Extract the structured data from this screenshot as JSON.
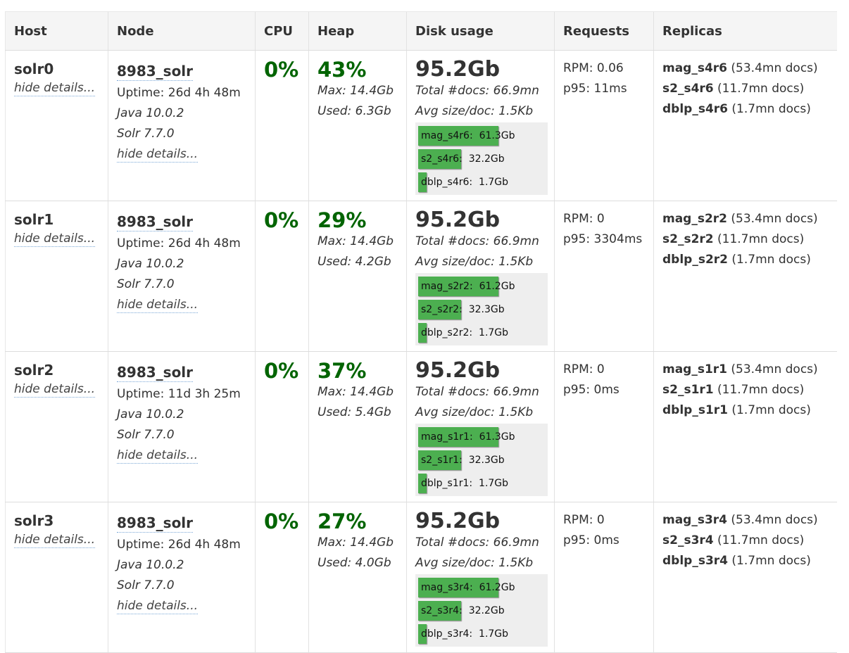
{
  "headers": [
    "Host",
    "Node",
    "CPU",
    "Heap",
    "Disk usage",
    "Requests",
    "Replicas"
  ],
  "colors": {
    "accent_green": "#006400",
    "bar_green": "#4caf50",
    "link_underline": "#7aa7d6"
  },
  "rows": [
    {
      "host": "solr0",
      "host_hide": "hide details...",
      "node": "8983_solr",
      "uptime": "Uptime: 26d 4h 48m",
      "java": "Java 10.0.2",
      "solr": "Solr 7.7.0",
      "node_hide": "hide details...",
      "cpu": "0%",
      "heap_pct": "43%",
      "heap_max": "Max: 14.4Gb",
      "heap_used": "Used: 6.3Gb",
      "disk_total": "95.2Gb",
      "total_docs": "Total #docs: 66.9mn",
      "avg_size": "Avg size/doc: 1.5Kb",
      "bars": [
        {
          "label": "mag_s4r6:",
          "size": "61.3Gb",
          "fraction": 0.64
        },
        {
          "label": "s2_s4r6:",
          "size": "32.2Gb",
          "fraction": 0.34
        },
        {
          "label": "dblp_s4r6:",
          "size": "1.7Gb",
          "fraction": 0.018
        }
      ],
      "rpm": "RPM: 0.06",
      "p95": "p95: 11ms",
      "replicas": [
        {
          "name": "mag_s4r6",
          "docs": "(53.4mn docs)"
        },
        {
          "name": "s2_s4r6",
          "docs": "(11.7mn docs)"
        },
        {
          "name": "dblp_s4r6",
          "docs": "(1.7mn docs)"
        }
      ]
    },
    {
      "host": "solr1",
      "host_hide": "hide details...",
      "node": "8983_solr",
      "uptime": "Uptime: 26d 4h 48m",
      "java": "Java 10.0.2",
      "solr": "Solr 7.7.0",
      "node_hide": "hide details...",
      "cpu": "0%",
      "heap_pct": "29%",
      "heap_max": "Max: 14.4Gb",
      "heap_used": "Used: 4.2Gb",
      "disk_total": "95.2Gb",
      "total_docs": "Total #docs: 66.9mn",
      "avg_size": "Avg size/doc: 1.5Kb",
      "bars": [
        {
          "label": "mag_s2r2:",
          "size": "61.2Gb",
          "fraction": 0.64
        },
        {
          "label": "s2_s2r2:",
          "size": "32.3Gb",
          "fraction": 0.34
        },
        {
          "label": "dblp_s2r2:",
          "size": "1.7Gb",
          "fraction": 0.018
        }
      ],
      "rpm": "RPM: 0",
      "p95": "p95: 3304ms",
      "replicas": [
        {
          "name": "mag_s2r2",
          "docs": "(53.4mn docs)"
        },
        {
          "name": "s2_s2r2",
          "docs": "(11.7mn docs)"
        },
        {
          "name": "dblp_s2r2",
          "docs": "(1.7mn docs)"
        }
      ]
    },
    {
      "host": "solr2",
      "host_hide": "hide details...",
      "node": "8983_solr",
      "uptime": "Uptime: 11d 3h 25m",
      "java": "Java 10.0.2",
      "solr": "Solr 7.7.0",
      "node_hide": "hide details...",
      "cpu": "0%",
      "heap_pct": "37%",
      "heap_max": "Max: 14.4Gb",
      "heap_used": "Used: 5.4Gb",
      "disk_total": "95.2Gb",
      "total_docs": "Total #docs: 66.9mn",
      "avg_size": "Avg size/doc: 1.5Kb",
      "bars": [
        {
          "label": "mag_s1r1:",
          "size": "61.3Gb",
          "fraction": 0.64
        },
        {
          "label": "s2_s1r1:",
          "size": "32.3Gb",
          "fraction": 0.34
        },
        {
          "label": "dblp_s1r1:",
          "size": "1.7Gb",
          "fraction": 0.018
        }
      ],
      "rpm": "RPM: 0",
      "p95": "p95: 0ms",
      "replicas": [
        {
          "name": "mag_s1r1",
          "docs": "(53.4mn docs)"
        },
        {
          "name": "s2_s1r1",
          "docs": "(11.7mn docs)"
        },
        {
          "name": "dblp_s1r1",
          "docs": "(1.7mn docs)"
        }
      ]
    },
    {
      "host": "solr3",
      "host_hide": "hide details...",
      "node": "8983_solr",
      "uptime": "Uptime: 26d 4h 48m",
      "java": "Java 10.0.2",
      "solr": "Solr 7.7.0",
      "node_hide": "hide details...",
      "cpu": "0%",
      "heap_pct": "27%",
      "heap_max": "Max: 14.4Gb",
      "heap_used": "Used: 4.0Gb",
      "disk_total": "95.2Gb",
      "total_docs": "Total #docs: 66.9mn",
      "avg_size": "Avg size/doc: 1.5Kb",
      "bars": [
        {
          "label": "mag_s3r4:",
          "size": "61.2Gb",
          "fraction": 0.64
        },
        {
          "label": "s2_s3r4:",
          "size": "32.2Gb",
          "fraction": 0.34
        },
        {
          "label": "dblp_s3r4:",
          "size": "1.7Gb",
          "fraction": 0.018
        }
      ],
      "rpm": "RPM: 0",
      "p95": "p95: 0ms",
      "replicas": [
        {
          "name": "mag_s3r4",
          "docs": "(53.4mn docs)"
        },
        {
          "name": "s2_s3r4",
          "docs": "(11.7mn docs)"
        },
        {
          "name": "dblp_s3r4",
          "docs": "(1.7mn docs)"
        }
      ]
    }
  ]
}
